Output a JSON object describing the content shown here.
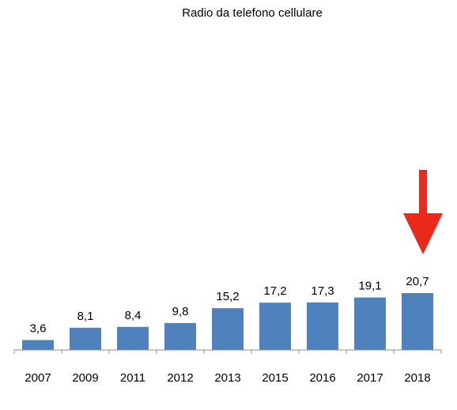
{
  "chart_data": {
    "type": "bar",
    "title": "Radio da telefono cellulare",
    "xlabel": "",
    "ylabel": "",
    "categories": [
      "2007",
      "2009",
      "2011",
      "2012",
      "2013",
      "2015",
      "2016",
      "2017",
      "2018"
    ],
    "values": [
      3.6,
      8.1,
      8.4,
      9.8,
      15.2,
      17.2,
      17.3,
      19.1,
      20.7
    ],
    "data_labels": [
      "3,6",
      "8,1",
      "8,4",
      "9,8",
      "15,2",
      "17,2",
      "17,3",
      "19,1",
      "20,7"
    ],
    "ylim": [
      0,
      20.7
    ],
    "grid": false,
    "legend": "none",
    "bar_color": "#4F81BD",
    "axis_color": "#8C8C8C",
    "annotation": {
      "type": "arrow",
      "target_category": "2018",
      "color": "#E8291C"
    }
  }
}
